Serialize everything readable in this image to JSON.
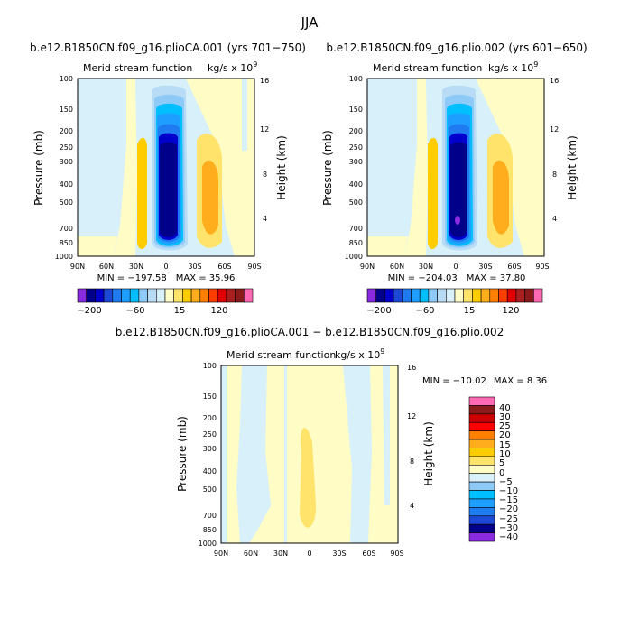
{
  "figure": {
    "title": "JJA",
    "diff_title": "b.e12.B1850CN.f09_g16.plioCA.001 − b.e12.B1850CN.f09_g16.plio.002"
  },
  "colors": {
    "levels": [
      "#8a2be2",
      "#00008b",
      "#0000cd",
      "#1c49d6",
      "#1e7cf0",
      "#1e9fff",
      "#00bfff",
      "#8ecaf7",
      "#b8dcf5",
      "#d7f0fa",
      "#fffcc6",
      "#ffe36b",
      "#ffcc00",
      "#ffad1c",
      "#ff7f00",
      "#ff3c00",
      "#e00000",
      "#aa1f1f",
      "#8b1a1a",
      "#ff69b4"
    ],
    "diff_levels": [
      "#8a2be2",
      "#00008b",
      "#1c49d6",
      "#1e7cf0",
      "#1e9fff",
      "#00bfff",
      "#8ecaf7",
      "#d7f0fa",
      "#fffcc6",
      "#ffe36b",
      "#ffcc00",
      "#ffad1c",
      "#ff7f00",
      "#ff0000",
      "#cc0000",
      "#8b1a1a",
      "#ff69b4"
    ]
  },
  "chart_data": [
    {
      "type": "heatmap",
      "title": "b.e12.B1850CN.f09_g16.plioCA.001 (yrs 701−750)",
      "subtitle": "Merid stream function",
      "units": "kg/s x 10",
      "units_exp": "9",
      "xlabel": "",
      "ylabel": "Pressure (mb)",
      "ylabel_right": "Height (km)",
      "x_ticks": [
        "90N",
        "60N",
        "30N",
        "0",
        "30S",
        "60S",
        "90S"
      ],
      "y_ticks": [
        "100",
        "150",
        "200",
        "250",
        "300",
        "400",
        "500",
        "700",
        "850",
        "1000"
      ],
      "y_right_ticks": [
        "16",
        "12",
        "8",
        "4"
      ],
      "min_label": "MIN = −197.58",
      "max_label": "MAX =   35.96",
      "colorbar_labels": [
        "−200",
        "−60",
        "15",
        "120"
      ],
      "cells": [
        {
          "lat_from": 75,
          "lat_to": 0,
          "value": "light-blue"
        },
        {
          "lat_from": 12,
          "lat_to": -12,
          "value": -197.58
        },
        {
          "lat_from": -15,
          "lat_to": -30,
          "value": 35.96
        }
      ]
    },
    {
      "type": "heatmap",
      "title": "b.e12.B1850CN.f09_g16.plio.002 (yrs 601−650)",
      "subtitle": "Merid stream function",
      "units": "kg/s x 10",
      "units_exp": "9",
      "xlabel": "",
      "ylabel": "Pressure (mb)",
      "ylabel_right": "Height (km)",
      "x_ticks": [
        "90N",
        "60N",
        "30N",
        "0",
        "30S",
        "60S",
        "90S"
      ],
      "y_ticks": [
        "100",
        "150",
        "200",
        "250",
        "300",
        "400",
        "500",
        "700",
        "850",
        "1000"
      ],
      "y_right_ticks": [
        "16",
        "12",
        "8",
        "4"
      ],
      "min_label": "MIN = −204.03",
      "max_label": "MAX =   37.80",
      "colorbar_labels": [
        "−200",
        "−60",
        "15",
        "120"
      ],
      "cells": [
        {
          "lat_from": 12,
          "lat_to": -12,
          "value": -204.03
        },
        {
          "lat_from": -15,
          "lat_to": -30,
          "value": 37.8
        }
      ]
    },
    {
      "type": "heatmap",
      "title": "",
      "subtitle": "Merid stream function",
      "units": "kg/s x 10",
      "units_exp": "9",
      "xlabel": "",
      "ylabel": "Pressure (mb)",
      "ylabel_right": "Height (km)",
      "x_ticks": [
        "90N",
        "60N",
        "30N",
        "0",
        "30S",
        "60S",
        "90S"
      ],
      "y_ticks": [
        "100",
        "150",
        "200",
        "250",
        "300",
        "400",
        "500",
        "700",
        "850",
        "1000"
      ],
      "y_right_ticks": [
        "16",
        "12",
        "8",
        "4"
      ],
      "min_label": "MIN = −10.02",
      "max_label": "MAX =    8.36",
      "colorbar_labels": [
        "40",
        "30",
        "25",
        "20",
        "15",
        "10",
        "5",
        "0",
        "−5",
        "−10",
        "−15",
        "−20",
        "−25",
        "−30",
        "−40"
      ],
      "cells": [
        {
          "lat_from": 8,
          "lat_to": -8,
          "value": 8.36
        },
        {
          "lat_from": 90,
          "lat_to": 75,
          "value": -10.02
        }
      ]
    }
  ]
}
